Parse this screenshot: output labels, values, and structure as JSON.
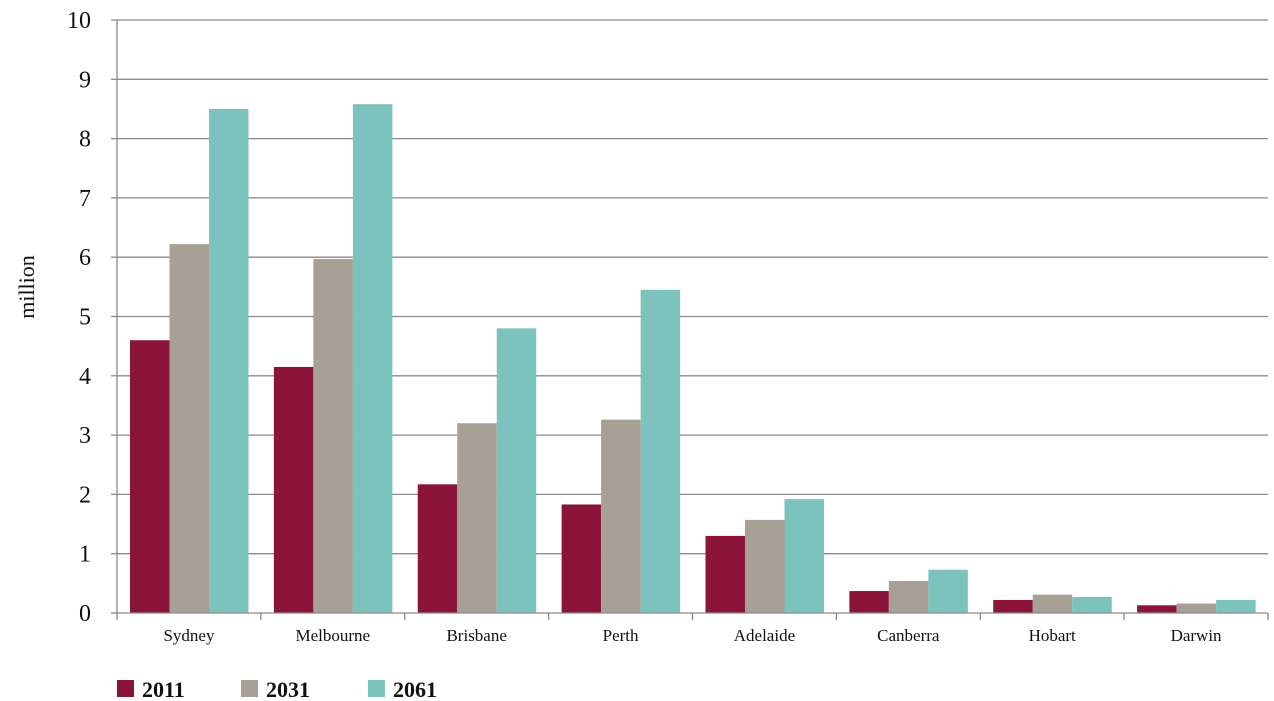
{
  "chart_data": {
    "type": "bar",
    "title": "",
    "xlabel": "",
    "ylabel": "million",
    "ylim": [
      0,
      10
    ],
    "yticks": [
      "0",
      "1",
      "2",
      "3",
      "4",
      "5",
      "6",
      "7",
      "8",
      "9",
      "10"
    ],
    "grid": true,
    "legend_position": "bottom-left",
    "categories": [
      "Sydney",
      "Melbourne",
      "Brisbane",
      "Perth",
      "Adelaide",
      "Canberra",
      "Hobart",
      "Darwin"
    ],
    "series": [
      {
        "name": "2011",
        "color": "#8B1538",
        "values": [
          4.6,
          4.15,
          2.17,
          1.83,
          1.3,
          0.37,
          0.22,
          0.13
        ]
      },
      {
        "name": "2031",
        "color": "#A89F96",
        "values": [
          6.22,
          5.97,
          3.2,
          3.26,
          1.57,
          0.54,
          0.31,
          0.16
        ]
      },
      {
        "name": "2061",
        "color": "#7DC3BD",
        "values": [
          8.5,
          8.58,
          4.8,
          5.45,
          1.92,
          0.73,
          0.27,
          0.22
        ]
      }
    ]
  }
}
